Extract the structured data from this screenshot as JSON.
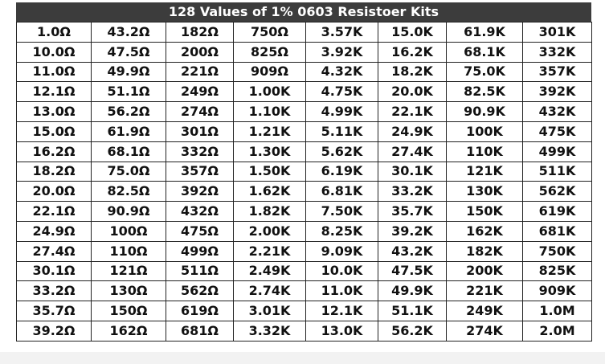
{
  "table": {
    "title": "128 Values of 1% 0603 Resistoer Kits",
    "rows": [
      [
        "1.0Ω",
        "43.2Ω",
        "182Ω",
        "750Ω",
        "3.57K",
        "15.0K",
        "61.9K",
        "301K"
      ],
      [
        "10.0Ω",
        "47.5Ω",
        "200Ω",
        "825Ω",
        "3.92K",
        "16.2K",
        "68.1K",
        "332K"
      ],
      [
        "11.0Ω",
        "49.9Ω",
        "221Ω",
        "909Ω",
        "4.32K",
        "18.2K",
        "75.0K",
        "357K"
      ],
      [
        "12.1Ω",
        "51.1Ω",
        "249Ω",
        "1.00K",
        "4.75K",
        "20.0K",
        "82.5K",
        "392K"
      ],
      [
        "13.0Ω",
        "56.2Ω",
        "274Ω",
        "1.10K",
        "4.99K",
        "22.1K",
        "90.9K",
        "432K"
      ],
      [
        "15.0Ω",
        "61.9Ω",
        "301Ω",
        "1.21K",
        "5.11K",
        "24.9K",
        "100K",
        "475K"
      ],
      [
        "16.2Ω",
        "68.1Ω",
        "332Ω",
        "1.30K",
        "5.62K",
        "27.4K",
        "110K",
        "499K"
      ],
      [
        "18.2Ω",
        "75.0Ω",
        "357Ω",
        "1.50K",
        "6.19K",
        "30.1K",
        "121K",
        "511K"
      ],
      [
        "20.0Ω",
        "82.5Ω",
        "392Ω",
        "1.62K",
        "6.81K",
        "33.2K",
        "130K",
        "562K"
      ],
      [
        "22.1Ω",
        "90.9Ω",
        "432Ω",
        "1.82K",
        "7.50K",
        "35.7K",
        "150K",
        "619K"
      ],
      [
        "24.9Ω",
        "100Ω",
        "475Ω",
        "2.00K",
        "8.25K",
        "39.2K",
        "162K",
        "681K"
      ],
      [
        "27.4Ω",
        "110Ω",
        "499Ω",
        "2.21K",
        "9.09K",
        "43.2K",
        "182K",
        "750K"
      ],
      [
        "30.1Ω",
        "121Ω",
        "511Ω",
        "2.49K",
        "10.0K",
        "47.5K",
        "200K",
        "825K"
      ],
      [
        "33.2Ω",
        "130Ω",
        "562Ω",
        "2.74K",
        "11.0K",
        "49.9K",
        "221K",
        "909K"
      ],
      [
        "35.7Ω",
        "150Ω",
        "619Ω",
        "3.01K",
        "12.1K",
        "51.1K",
        "249K",
        "1.0M"
      ],
      [
        "39.2Ω",
        "162Ω",
        "681Ω",
        "3.32K",
        "13.0K",
        "56.2K",
        "274K",
        "2.0M"
      ]
    ]
  }
}
